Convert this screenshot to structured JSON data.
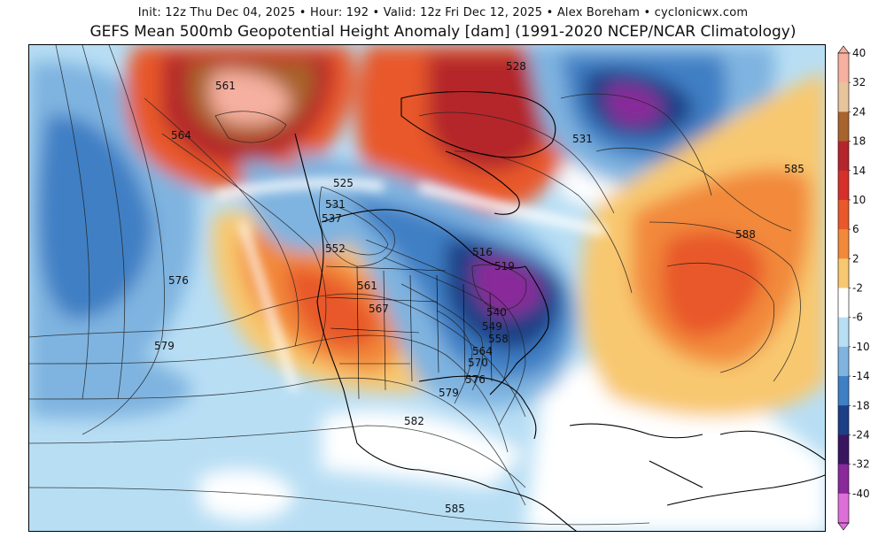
{
  "header": {
    "subtitle": "Init: 12z Thu Dec 04, 2025  •  Hour: 192  •  Valid: 12z Fri Dec 12, 2025  •  Alex Boreham  •  cyclonicwx.com",
    "title": "GEFS Mean 500mb Geopotential Height Anomaly [dam] (1991-2020 NCEP/NCAR Climatology)"
  },
  "colorbar": {
    "labels": [
      "40",
      "32",
      "24",
      "18",
      "14",
      "10",
      "6",
      "2",
      "-2",
      "-6",
      "-10",
      "-14",
      "-18",
      "-24",
      "-32",
      "-40"
    ],
    "colors": [
      "#f7b0a0",
      "#e8c49c",
      "#a8642c",
      "#b4262c",
      "#d6302a",
      "#e8582a",
      "#f2893a",
      "#f8c870",
      "#ffffff",
      "#b8def4",
      "#7fb4e0",
      "#3f7fc4",
      "#1c3f86",
      "#3a1660",
      "#8a2a9a",
      "#dd6fd8"
    ]
  },
  "map": {
    "anomaly_colors": {
      "strong_positive": "#b4262c",
      "positive": "#e8582a",
      "weak_positive": "#f8c870",
      "neutral": "#ffffff",
      "weak_negative": "#b8def4",
      "negative": "#3f7fc4",
      "strong_negative": "#1c3f86",
      "extreme_negative": "#8a2a9a",
      "extreme_positive": "#f7b0a0"
    },
    "contour_labels": [
      "561",
      "564",
      "528",
      "531",
      "585",
      "588",
      "525",
      "531",
      "537",
      "552",
      "516",
      "519",
      "561",
      "567",
      "576",
      "579",
      "540",
      "549",
      "558",
      "564",
      "570",
      "576",
      "579",
      "582",
      "585"
    ]
  }
}
